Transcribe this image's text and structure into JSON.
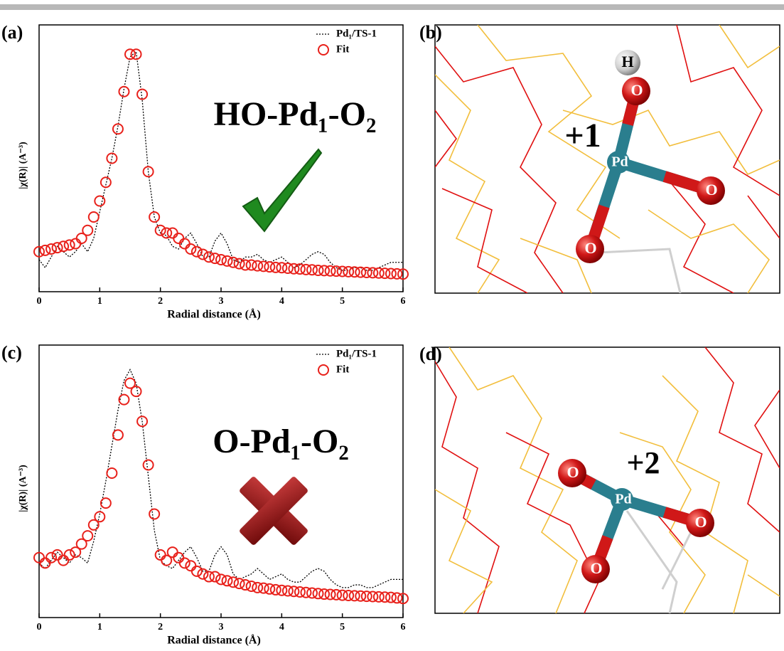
{
  "chart_data": [
    {
      "type": "line",
      "panel_label": "(a)",
      "annotation": "HO-Pd₁-O₂",
      "xlabel": "Radial distance (Å)",
      "ylabel": "|χ(R)| (A⁻³)",
      "xlim": [
        0,
        6
      ],
      "xticks": [
        0,
        1,
        2,
        3,
        4,
        5,
        6
      ],
      "ylim": [
        0,
        1
      ],
      "legend": "upper right",
      "x": [
        0,
        0.1,
        0.2,
        0.3,
        0.4,
        0.5,
        0.6,
        0.7,
        0.8,
        0.9,
        1,
        1.1,
        1.2,
        1.3,
        1.4,
        1.5,
        1.6,
        1.7,
        1.8,
        1.9,
        2,
        2.1,
        2.2,
        2.3,
        2.4,
        2.5,
        2.6,
        2.7,
        2.8,
        2.9,
        3,
        3.1,
        3.2,
        3.3,
        3.4,
        3.5,
        3.6,
        3.7,
        3.8,
        3.9,
        4,
        4.1,
        4.2,
        4.3,
        4.4,
        4.5,
        4.6,
        4.7,
        4.8,
        4.9,
        5,
        5.1,
        5.2,
        5.3,
        5.4,
        5.5,
        5.6,
        5.7,
        5.8,
        5.9,
        6
      ],
      "series": [
        {
          "name": "Pd₁/TS-1",
          "color": "#000000",
          "style": "dotted",
          "values": [
            0.12,
            0.09,
            0.13,
            0.17,
            0.15,
            0.13,
            0.15,
            0.18,
            0.15,
            0.2,
            0.3,
            0.4,
            0.5,
            0.62,
            0.76,
            0.88,
            0.9,
            0.72,
            0.45,
            0.28,
            0.22,
            0.21,
            0.17,
            0.16,
            0.2,
            0.22,
            0.18,
            0.13,
            0.13,
            0.19,
            0.22,
            0.18,
            0.12,
            0.11,
            0.13,
            0.13,
            0.14,
            0.12,
            0.11,
            0.12,
            0.13,
            0.11,
            0.09,
            0.1,
            0.12,
            0.14,
            0.15,
            0.14,
            0.11,
            0.09,
            0.08,
            0.08,
            0.09,
            0.09,
            0.08,
            0.08,
            0.09,
            0.1,
            0.11,
            0.11,
            0.11
          ]
        },
        {
          "name": "Fit",
          "color": "#e8201a",
          "style": "circles",
          "values": [
            0.15,
            0.155,
            0.16,
            0.165,
            0.17,
            0.175,
            0.18,
            0.2,
            0.23,
            0.28,
            0.34,
            0.41,
            0.5,
            0.61,
            0.75,
            0.89,
            0.89,
            0.74,
            0.45,
            0.28,
            0.23,
            0.22,
            0.22,
            0.2,
            0.18,
            0.16,
            0.15,
            0.14,
            0.13,
            0.125,
            0.12,
            0.115,
            0.11,
            0.105,
            0.1,
            0.1,
            0.097,
            0.095,
            0.093,
            0.091,
            0.09,
            0.088,
            0.086,
            0.085,
            0.083,
            0.082,
            0.08,
            0.079,
            0.078,
            0.077,
            0.076,
            0.075,
            0.074,
            0.073,
            0.072,
            0.071,
            0.07,
            0.069,
            0.068,
            0.067,
            0.066
          ]
        }
      ]
    },
    {
      "type": "line",
      "panel_label": "(c)",
      "annotation": "O-Pd₁-O₂",
      "xlabel": "Radial distance (Å)",
      "ylabel": "|χ(R)| (A⁻³)",
      "xlim": [
        0,
        6
      ],
      "xticks": [
        0,
        1,
        2,
        3,
        4,
        5,
        6
      ],
      "ylim": [
        0,
        1
      ],
      "legend": "upper right",
      "x": [
        0,
        0.1,
        0.2,
        0.3,
        0.4,
        0.5,
        0.6,
        0.7,
        0.8,
        0.9,
        1,
        1.1,
        1.2,
        1.3,
        1.4,
        1.5,
        1.6,
        1.7,
        1.8,
        1.9,
        2,
        2.1,
        2.2,
        2.3,
        2.4,
        2.5,
        2.6,
        2.7,
        2.8,
        2.9,
        3,
        3.1,
        3.2,
        3.3,
        3.4,
        3.5,
        3.6,
        3.7,
        3.8,
        3.9,
        4,
        4.1,
        4.2,
        4.3,
        4.4,
        4.5,
        4.6,
        4.7,
        4.8,
        4.9,
        5,
        5.1,
        5.2,
        5.3,
        5.4,
        5.5,
        5.6,
        5.7,
        5.8,
        5.9,
        6
      ],
      "series": [
        {
          "name": "Pd₁/TS-1",
          "color": "#000000",
          "style": "dotted",
          "values": [
            0.2,
            0.18,
            0.21,
            0.24,
            0.22,
            0.2,
            0.23,
            0.22,
            0.2,
            0.28,
            0.38,
            0.5,
            0.63,
            0.76,
            0.87,
            0.91,
            0.86,
            0.72,
            0.52,
            0.32,
            0.21,
            0.19,
            0.18,
            0.21,
            0.24,
            0.26,
            0.22,
            0.17,
            0.17,
            0.23,
            0.26,
            0.23,
            0.16,
            0.14,
            0.15,
            0.16,
            0.18,
            0.16,
            0.14,
            0.15,
            0.16,
            0.14,
            0.13,
            0.13,
            0.15,
            0.17,
            0.18,
            0.17,
            0.14,
            0.12,
            0.11,
            0.11,
            0.12,
            0.12,
            0.11,
            0.11,
            0.12,
            0.13,
            0.14,
            0.14,
            0.14
          ]
        },
        {
          "name": "Fit",
          "color": "#e8201a",
          "style": "circles",
          "values": [
            0.22,
            0.2,
            0.22,
            0.23,
            0.21,
            0.23,
            0.24,
            0.27,
            0.3,
            0.34,
            0.37,
            0.42,
            0.53,
            0.67,
            0.8,
            0.86,
            0.83,
            0.72,
            0.56,
            0.38,
            0.23,
            0.21,
            0.24,
            0.22,
            0.2,
            0.19,
            0.17,
            0.16,
            0.15,
            0.15,
            0.14,
            0.135,
            0.13,
            0.125,
            0.12,
            0.115,
            0.11,
            0.108,
            0.105,
            0.102,
            0.1,
            0.098,
            0.096,
            0.094,
            0.092,
            0.09,
            0.088,
            0.086,
            0.085,
            0.084,
            0.082,
            0.081,
            0.08,
            0.079,
            0.078,
            0.077,
            0.076,
            0.075,
            0.074,
            0.072,
            0.07
          ]
        }
      ]
    }
  ],
  "panels": [
    {
      "label": "(b)",
      "charge": "+1",
      "atoms": [
        "H",
        "O",
        "Pd",
        "O",
        "O"
      ]
    },
    {
      "label": "(d)",
      "charge": "+2",
      "atoms": [
        "O",
        "Pd",
        "O",
        "O"
      ]
    }
  ]
}
